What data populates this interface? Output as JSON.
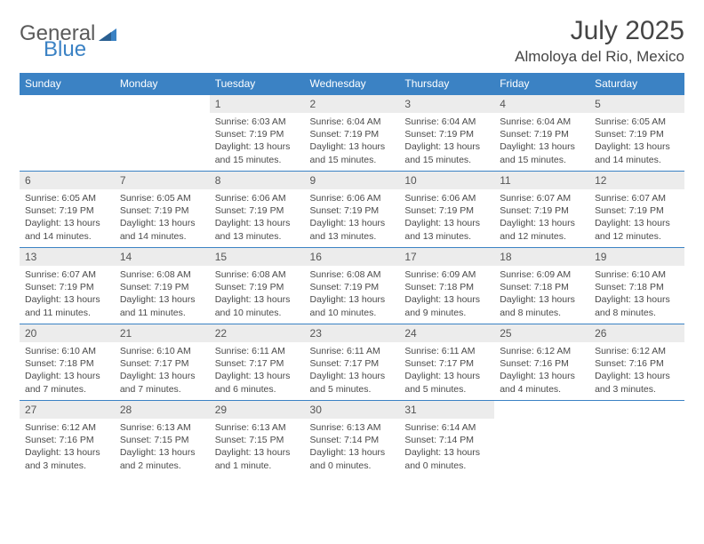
{
  "brand": {
    "part1": "General",
    "part2": "Blue"
  },
  "title": "July 2025",
  "location": "Almoloya del Rio, Mexico",
  "colors": {
    "header_bg": "#3b82c4",
    "header_text": "#ffffff",
    "daynum_bg": "#ececec",
    "text": "#4a4a4a",
    "rule": "#3b82c4",
    "background": "#ffffff"
  },
  "day_headers": [
    "Sunday",
    "Monday",
    "Tuesday",
    "Wednesday",
    "Thursday",
    "Friday",
    "Saturday"
  ],
  "weeks": [
    [
      null,
      null,
      {
        "n": "1",
        "sr": "Sunrise: 6:03 AM",
        "ss": "Sunset: 7:19 PM",
        "d1": "Daylight: 13 hours",
        "d2": "and 15 minutes."
      },
      {
        "n": "2",
        "sr": "Sunrise: 6:04 AM",
        "ss": "Sunset: 7:19 PM",
        "d1": "Daylight: 13 hours",
        "d2": "and 15 minutes."
      },
      {
        "n": "3",
        "sr": "Sunrise: 6:04 AM",
        "ss": "Sunset: 7:19 PM",
        "d1": "Daylight: 13 hours",
        "d2": "and 15 minutes."
      },
      {
        "n": "4",
        "sr": "Sunrise: 6:04 AM",
        "ss": "Sunset: 7:19 PM",
        "d1": "Daylight: 13 hours",
        "d2": "and 15 minutes."
      },
      {
        "n": "5",
        "sr": "Sunrise: 6:05 AM",
        "ss": "Sunset: 7:19 PM",
        "d1": "Daylight: 13 hours",
        "d2": "and 14 minutes."
      }
    ],
    [
      {
        "n": "6",
        "sr": "Sunrise: 6:05 AM",
        "ss": "Sunset: 7:19 PM",
        "d1": "Daylight: 13 hours",
        "d2": "and 14 minutes."
      },
      {
        "n": "7",
        "sr": "Sunrise: 6:05 AM",
        "ss": "Sunset: 7:19 PM",
        "d1": "Daylight: 13 hours",
        "d2": "and 14 minutes."
      },
      {
        "n": "8",
        "sr": "Sunrise: 6:06 AM",
        "ss": "Sunset: 7:19 PM",
        "d1": "Daylight: 13 hours",
        "d2": "and 13 minutes."
      },
      {
        "n": "9",
        "sr": "Sunrise: 6:06 AM",
        "ss": "Sunset: 7:19 PM",
        "d1": "Daylight: 13 hours",
        "d2": "and 13 minutes."
      },
      {
        "n": "10",
        "sr": "Sunrise: 6:06 AM",
        "ss": "Sunset: 7:19 PM",
        "d1": "Daylight: 13 hours",
        "d2": "and 13 minutes."
      },
      {
        "n": "11",
        "sr": "Sunrise: 6:07 AM",
        "ss": "Sunset: 7:19 PM",
        "d1": "Daylight: 13 hours",
        "d2": "and 12 minutes."
      },
      {
        "n": "12",
        "sr": "Sunrise: 6:07 AM",
        "ss": "Sunset: 7:19 PM",
        "d1": "Daylight: 13 hours",
        "d2": "and 12 minutes."
      }
    ],
    [
      {
        "n": "13",
        "sr": "Sunrise: 6:07 AM",
        "ss": "Sunset: 7:19 PM",
        "d1": "Daylight: 13 hours",
        "d2": "and 11 minutes."
      },
      {
        "n": "14",
        "sr": "Sunrise: 6:08 AM",
        "ss": "Sunset: 7:19 PM",
        "d1": "Daylight: 13 hours",
        "d2": "and 11 minutes."
      },
      {
        "n": "15",
        "sr": "Sunrise: 6:08 AM",
        "ss": "Sunset: 7:19 PM",
        "d1": "Daylight: 13 hours",
        "d2": "and 10 minutes."
      },
      {
        "n": "16",
        "sr": "Sunrise: 6:08 AM",
        "ss": "Sunset: 7:19 PM",
        "d1": "Daylight: 13 hours",
        "d2": "and 10 minutes."
      },
      {
        "n": "17",
        "sr": "Sunrise: 6:09 AM",
        "ss": "Sunset: 7:18 PM",
        "d1": "Daylight: 13 hours",
        "d2": "and 9 minutes."
      },
      {
        "n": "18",
        "sr": "Sunrise: 6:09 AM",
        "ss": "Sunset: 7:18 PM",
        "d1": "Daylight: 13 hours",
        "d2": "and 8 minutes."
      },
      {
        "n": "19",
        "sr": "Sunrise: 6:10 AM",
        "ss": "Sunset: 7:18 PM",
        "d1": "Daylight: 13 hours",
        "d2": "and 8 minutes."
      }
    ],
    [
      {
        "n": "20",
        "sr": "Sunrise: 6:10 AM",
        "ss": "Sunset: 7:18 PM",
        "d1": "Daylight: 13 hours",
        "d2": "and 7 minutes."
      },
      {
        "n": "21",
        "sr": "Sunrise: 6:10 AM",
        "ss": "Sunset: 7:17 PM",
        "d1": "Daylight: 13 hours",
        "d2": "and 7 minutes."
      },
      {
        "n": "22",
        "sr": "Sunrise: 6:11 AM",
        "ss": "Sunset: 7:17 PM",
        "d1": "Daylight: 13 hours",
        "d2": "and 6 minutes."
      },
      {
        "n": "23",
        "sr": "Sunrise: 6:11 AM",
        "ss": "Sunset: 7:17 PM",
        "d1": "Daylight: 13 hours",
        "d2": "and 5 minutes."
      },
      {
        "n": "24",
        "sr": "Sunrise: 6:11 AM",
        "ss": "Sunset: 7:17 PM",
        "d1": "Daylight: 13 hours",
        "d2": "and 5 minutes."
      },
      {
        "n": "25",
        "sr": "Sunrise: 6:12 AM",
        "ss": "Sunset: 7:16 PM",
        "d1": "Daylight: 13 hours",
        "d2": "and 4 minutes."
      },
      {
        "n": "26",
        "sr": "Sunrise: 6:12 AM",
        "ss": "Sunset: 7:16 PM",
        "d1": "Daylight: 13 hours",
        "d2": "and 3 minutes."
      }
    ],
    [
      {
        "n": "27",
        "sr": "Sunrise: 6:12 AM",
        "ss": "Sunset: 7:16 PM",
        "d1": "Daylight: 13 hours",
        "d2": "and 3 minutes."
      },
      {
        "n": "28",
        "sr": "Sunrise: 6:13 AM",
        "ss": "Sunset: 7:15 PM",
        "d1": "Daylight: 13 hours",
        "d2": "and 2 minutes."
      },
      {
        "n": "29",
        "sr": "Sunrise: 6:13 AM",
        "ss": "Sunset: 7:15 PM",
        "d1": "Daylight: 13 hours",
        "d2": "and 1 minute."
      },
      {
        "n": "30",
        "sr": "Sunrise: 6:13 AM",
        "ss": "Sunset: 7:14 PM",
        "d1": "Daylight: 13 hours",
        "d2": "and 0 minutes."
      },
      {
        "n": "31",
        "sr": "Sunrise: 6:14 AM",
        "ss": "Sunset: 7:14 PM",
        "d1": "Daylight: 13 hours",
        "d2": "and 0 minutes."
      },
      null,
      null
    ]
  ]
}
